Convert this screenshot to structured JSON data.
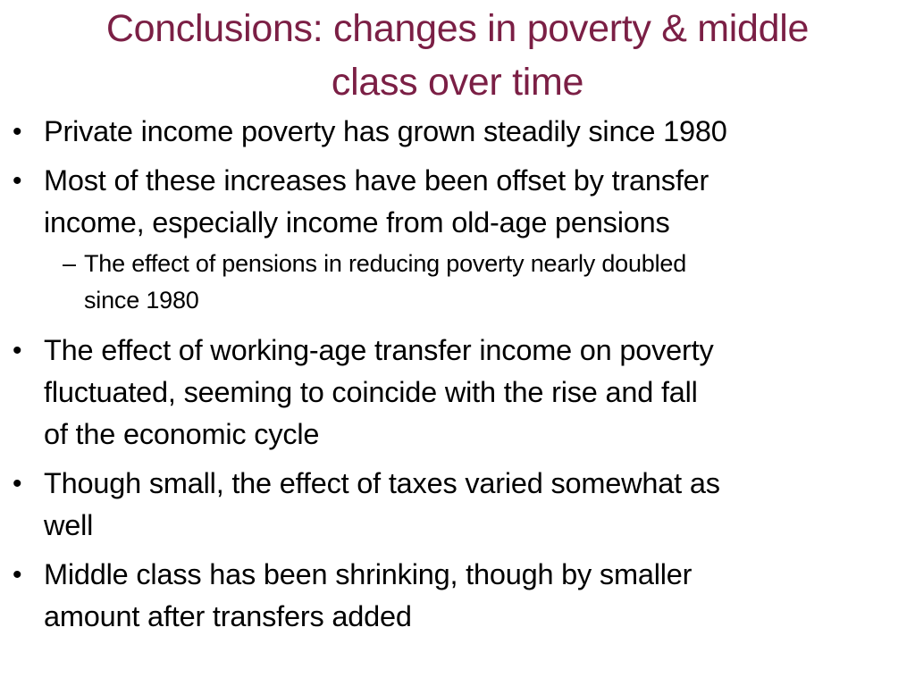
{
  "slide": {
    "title_lines": [
      "Conclusions: changes in poverty & middle",
      "class over time"
    ],
    "title_color": "#7b1f45",
    "bullet_marker": "•",
    "sub_marker": "–",
    "bullets": [
      {
        "lines": [
          "Private income poverty has grown steadily since 1980"
        ]
      },
      {
        "lines": [
          "Most of these increases have been offset by transfer",
          "income, especially income from old-age pensions"
        ],
        "sub": {
          "lines": [
            "The effect of pensions in reducing poverty nearly doubled",
            "since 1980"
          ]
        }
      },
      {
        "lines": [
          "The effect of working-age transfer income on poverty",
          "fluctuated, seeming to coincide with the rise and fall",
          "of the economic cycle"
        ]
      },
      {
        "lines": [
          "Though small, the effect of taxes varied somewhat as",
          "well"
        ]
      },
      {
        "lines": [
          "Middle class has been shrinking, though by smaller",
          "amount after transfers added"
        ]
      }
    ]
  }
}
